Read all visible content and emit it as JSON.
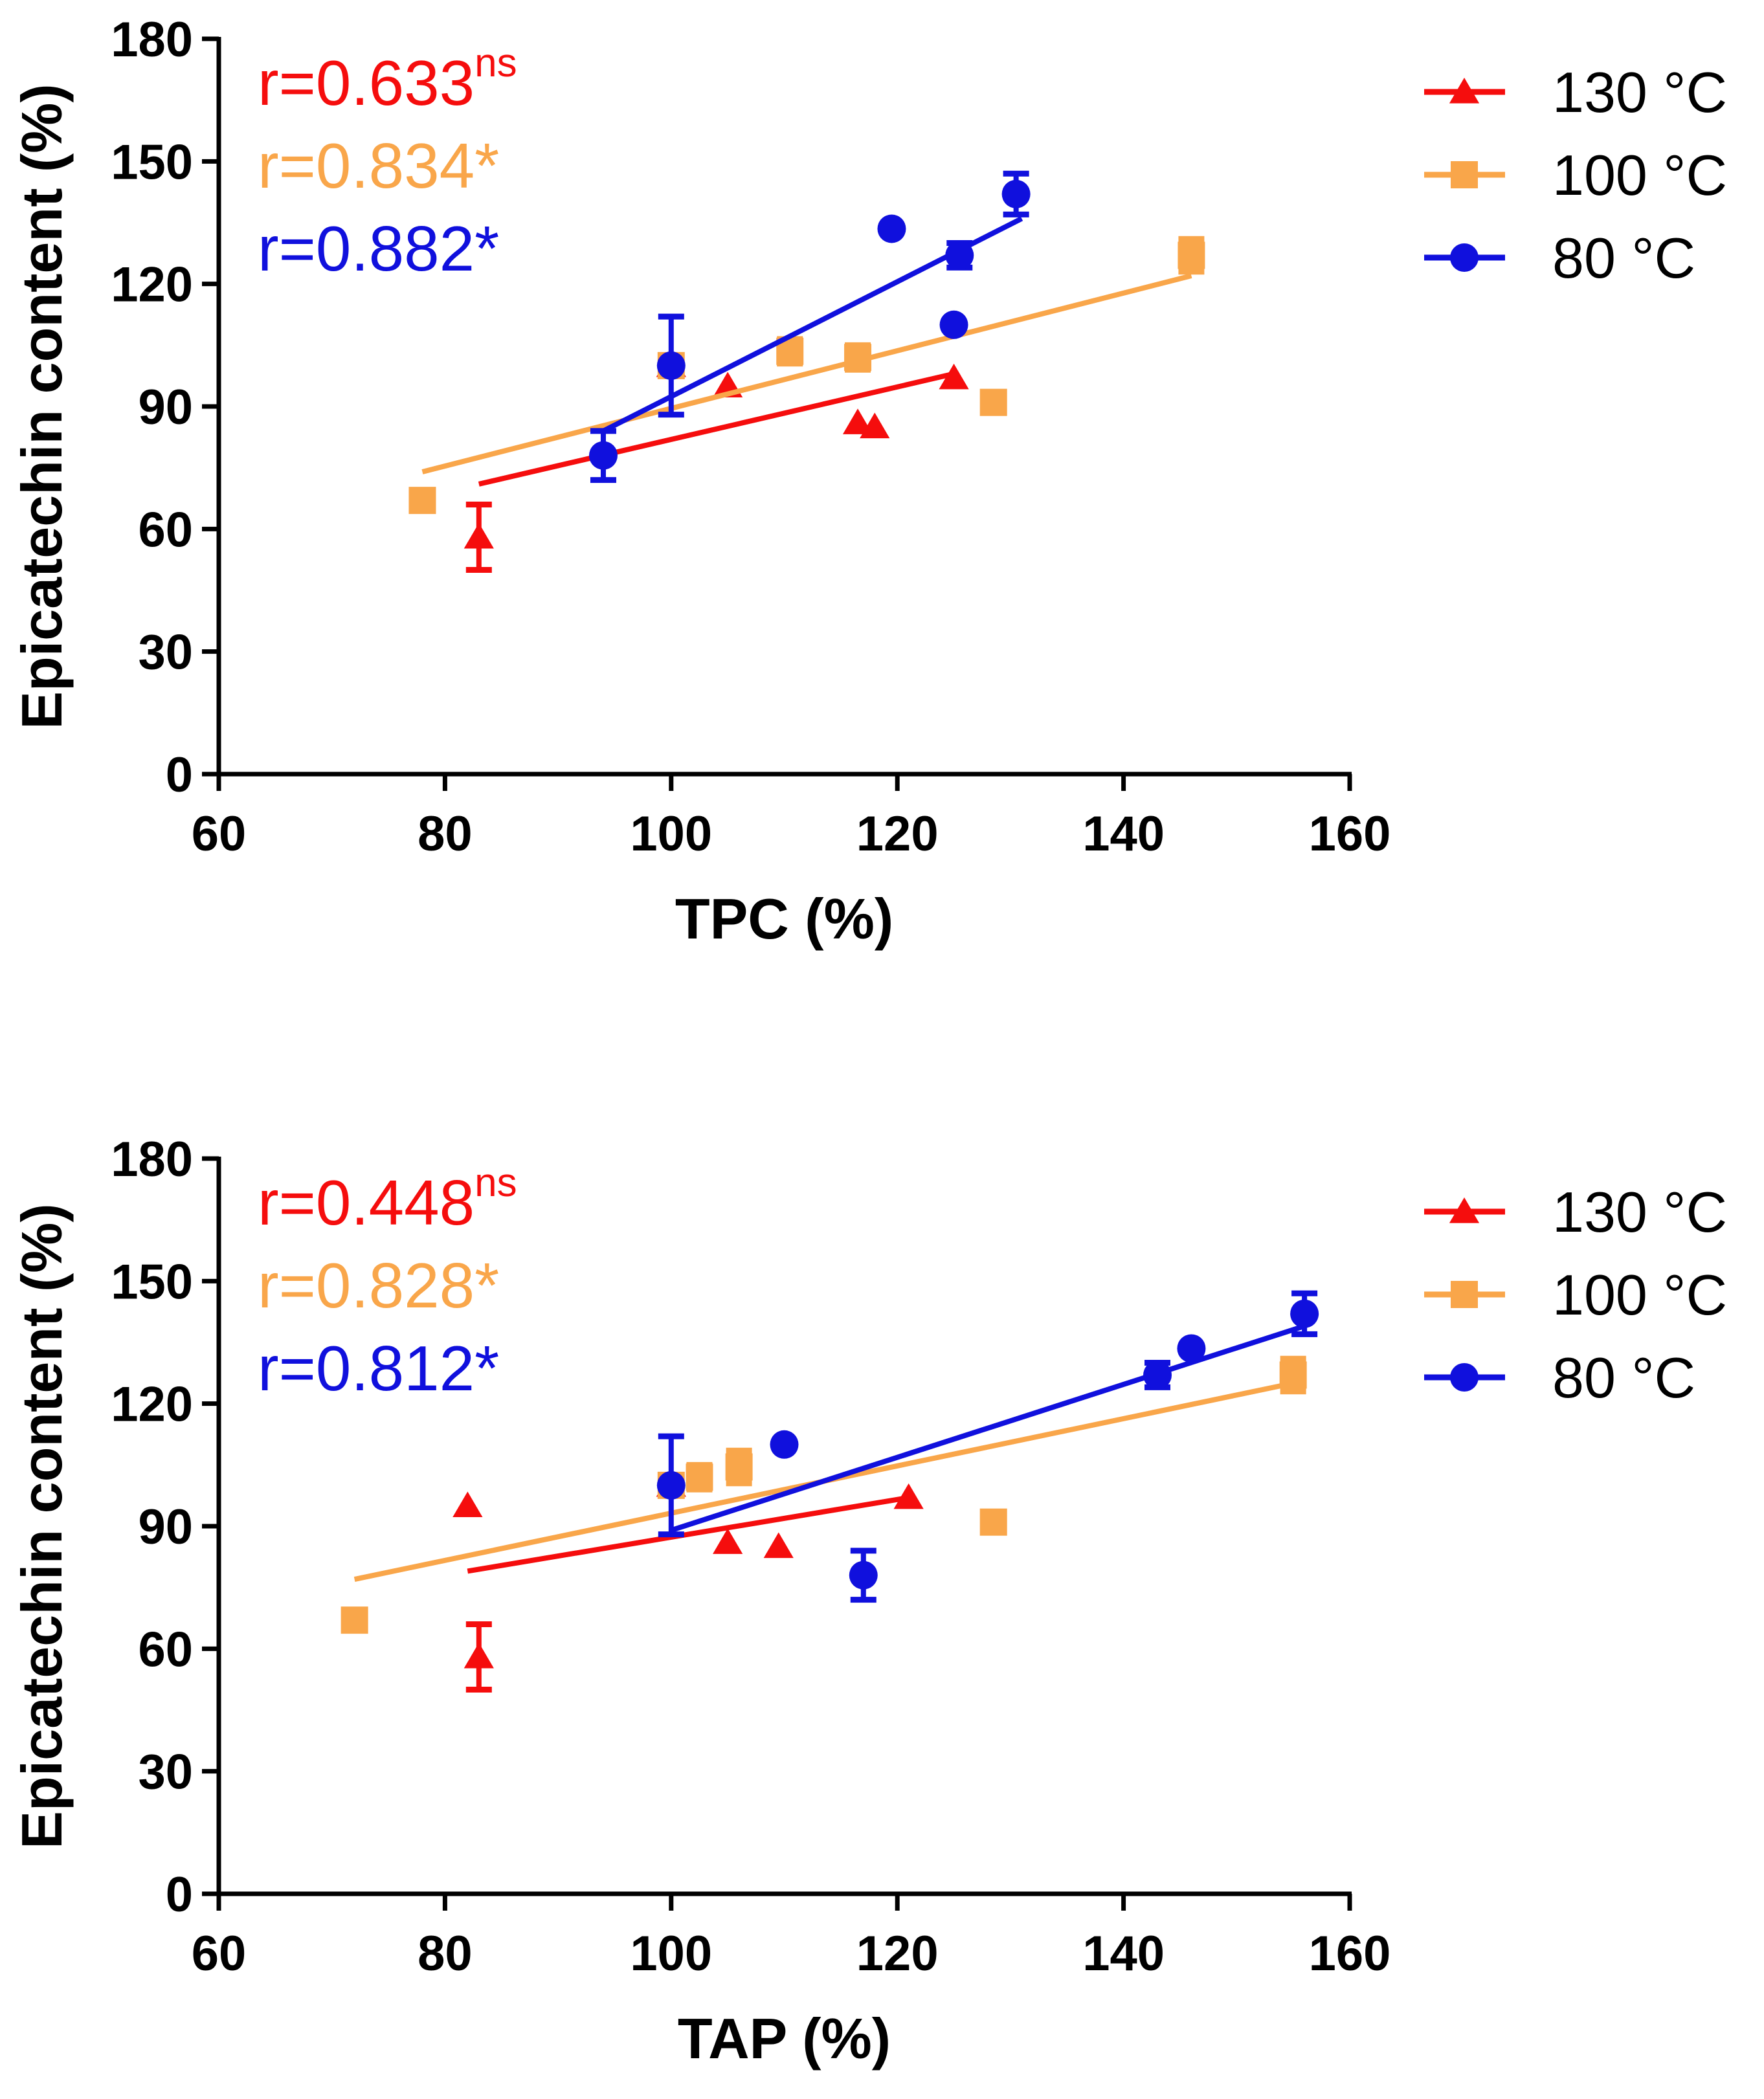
{
  "colors": {
    "130": "#f50d0d",
    "100": "#f9a64a",
    "80": "#1010dd",
    "axis": "#000000"
  },
  "chart_data": [
    {
      "type": "scatter",
      "title": "",
      "xlabel": "TPC (%)",
      "ylabel": "Epicatechin content (%)",
      "xlim": [
        60,
        160
      ],
      "ylim": [
        0,
        180
      ],
      "xticks": [
        "60",
        "80",
        "100",
        "120",
        "140",
        "160"
      ],
      "yticks": [
        "0",
        "30",
        "60",
        "90",
        "120",
        "150",
        "180"
      ],
      "legend_position": "right",
      "correlations": [
        {
          "series": "130 °C",
          "text": "r=0.633",
          "sup": "ns"
        },
        {
          "series": "100 °C",
          "text": "r=0.834*",
          "sup": ""
        },
        {
          "series": "80 °C",
          "text": "r=0.882*",
          "sup": ""
        }
      ],
      "series": [
        {
          "name": "130 °C",
          "color_key": "130",
          "marker": "triangle",
          "points": [
            {
              "x": 83,
              "y": 58,
              "err": 8
            },
            {
              "x": 100,
              "y": 100,
              "err": 0
            },
            {
              "x": 105,
              "y": 95,
              "err": 0
            },
            {
              "x": 116.5,
              "y": 86,
              "err": 0
            },
            {
              "x": 118,
              "y": 85,
              "err": 0
            },
            {
              "x": 125,
              "y": 97,
              "err": 0
            }
          ],
          "fit": [
            [
              83,
              71
            ],
            [
              125,
              98
            ]
          ]
        },
        {
          "name": "100 °C",
          "color_key": "100",
          "marker": "square",
          "points": [
            {
              "x": 78,
              "y": 67,
              "err": 0
            },
            {
              "x": 100,
              "y": 100,
              "err": 0
            },
            {
              "x": 110.5,
              "y": 103.5,
              "err": 3
            },
            {
              "x": 116.5,
              "y": 102,
              "err": 3
            },
            {
              "x": 128.5,
              "y": 91,
              "err": 2
            },
            {
              "x": 146,
              "y": 127,
              "err": 4
            }
          ],
          "fit": [
            [
              78,
              74
            ],
            [
              146,
              122
            ]
          ]
        },
        {
          "name": "80 °C",
          "color_key": "80",
          "marker": "circle",
          "points": [
            {
              "x": 94,
              "y": 78,
              "err": 6
            },
            {
              "x": 100,
              "y": 100,
              "err": 12
            },
            {
              "x": 119.5,
              "y": 133.5,
              "err": 0
            },
            {
              "x": 125,
              "y": 110,
              "err": 0
            },
            {
              "x": 125.5,
              "y": 127,
              "err": 3
            },
            {
              "x": 130.5,
              "y": 142,
              "err": 5
            }
          ],
          "fit": [
            [
              94,
              84
            ],
            [
              131,
              136
            ]
          ]
        }
      ]
    },
    {
      "type": "scatter",
      "title": "",
      "xlabel": "TAP (%)",
      "ylabel": "Epicatechin content (%)",
      "xlim": [
        60,
        160
      ],
      "ylim": [
        0,
        180
      ],
      "xticks": [
        "60",
        "80",
        "100",
        "120",
        "140",
        "160"
      ],
      "yticks": [
        "0",
        "30",
        "60",
        "90",
        "120",
        "150",
        "180"
      ],
      "legend_position": "right",
      "correlations": [
        {
          "series": "130 °C",
          "text": "r=0.448",
          "sup": "ns"
        },
        {
          "series": "100 °C",
          "text": "r=0.828*",
          "sup": ""
        },
        {
          "series": "80 °C",
          "text": "r=0.812*",
          "sup": ""
        }
      ],
      "series": [
        {
          "name": "130 °C",
          "color_key": "130",
          "marker": "triangle",
          "points": [
            {
              "x": 82,
              "y": 95,
              "err": 0
            },
            {
              "x": 83,
              "y": 58,
              "err": 8
            },
            {
              "x": 100,
              "y": 100,
              "err": 0
            },
            {
              "x": 105,
              "y": 86,
              "err": 0
            },
            {
              "x": 109.5,
              "y": 85,
              "err": 0
            },
            {
              "x": 121,
              "y": 97,
              "err": 0
            }
          ],
          "fit": [
            [
              82,
              79
            ],
            [
              121,
              97
            ]
          ]
        },
        {
          "name": "100 °C",
          "color_key": "100",
          "marker": "square",
          "points": [
            {
              "x": 72,
              "y": 67,
              "err": 0
            },
            {
              "x": 100,
              "y": 100,
              "err": 0
            },
            {
              "x": 102.5,
              "y": 102,
              "err": 3
            },
            {
              "x": 106,
              "y": 104.5,
              "err": 4
            },
            {
              "x": 128.5,
              "y": 91,
              "err": 2
            },
            {
              "x": 155,
              "y": 127,
              "err": 4
            }
          ],
          "fit": [
            [
              72,
              77
            ],
            [
              155,
              125
            ]
          ]
        },
        {
          "name": "80 °C",
          "color_key": "80",
          "marker": "circle",
          "points": [
            {
              "x": 100,
              "y": 100,
              "err": 12
            },
            {
              "x": 110,
              "y": 110,
              "err": 0
            },
            {
              "x": 117,
              "y": 78,
              "err": 6
            },
            {
              "x": 143,
              "y": 127,
              "err": 3
            },
            {
              "x": 146,
              "y": 133.5,
              "err": 0
            },
            {
              "x": 156,
              "y": 142,
              "err": 5
            }
          ],
          "fit": [
            [
              100,
              89
            ],
            [
              156,
              139
            ]
          ]
        }
      ]
    }
  ]
}
